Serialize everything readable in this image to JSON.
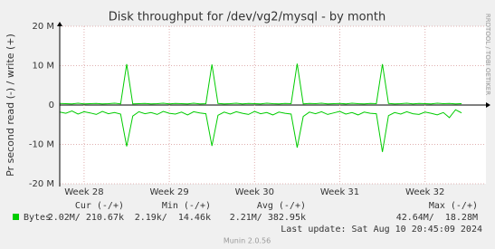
{
  "chart_data": {
    "type": "line",
    "title": "Disk throughput for /dev/vg2/mysql - by month",
    "y_label": "Pr second read (-) / write (+)",
    "watermark": "RRDTOOL / TOBI OETIKER",
    "x": [
      0,
      0.5,
      1,
      1.5,
      2,
      2.5,
      3,
      3.5,
      4,
      4.5,
      5,
      5.5,
      6,
      6.5,
      7,
      7.5,
      8,
      8.5,
      9,
      9.5,
      10,
      10.5,
      11,
      11.5,
      12,
      12.5,
      13,
      13.5,
      14,
      14.5,
      15,
      15.5,
      16,
      16.5,
      17,
      17.5,
      18,
      18.5,
      19,
      19.5,
      20,
      20.5,
      21,
      21.5,
      22,
      22.5,
      23,
      23.5,
      24,
      24.5,
      25,
      25.5,
      26,
      26.5,
      27,
      27.5,
      28,
      28.5,
      29,
      29.5,
      30,
      30.5,
      31,
      31.5,
      32,
      32.5,
      33
    ],
    "xlim": [
      0,
      35
    ],
    "xticks": [
      {
        "value": 2,
        "label": "Week 28"
      },
      {
        "value": 9,
        "label": "Week 29"
      },
      {
        "value": 16,
        "label": "Week 30"
      },
      {
        "value": 23,
        "label": "Week 31"
      },
      {
        "value": 30,
        "label": "Week 32"
      }
    ],
    "ylim": [
      -20000000,
      20000000
    ],
    "yticks": [
      {
        "value": -20000000,
        "label": "-20 M"
      },
      {
        "value": -10000000,
        "label": "-10 M"
      },
      0,
      {
        "value": 10000000,
        "label": "10 M"
      },
      {
        "value": 20000000,
        "label": "20 M"
      }
    ],
    "grid": true,
    "series": [
      {
        "name": "Bytes",
        "color": "#00cc00",
        "values": [
          400000,
          350000,
          300000,
          450000,
          300000,
          350000,
          400000,
          300000,
          350000,
          450000,
          300000,
          10400000,
          300000,
          350000,
          400000,
          300000,
          350000,
          450000,
          300000,
          400000,
          350000,
          300000,
          450000,
          300000,
          350000,
          10300000,
          400000,
          300000,
          350000,
          450000,
          300000,
          400000,
          350000,
          300000,
          450000,
          350000,
          300000,
          400000,
          350000,
          10500000,
          300000,
          400000,
          350000,
          450000,
          300000,
          350000,
          400000,
          300000,
          450000,
          350000,
          300000,
          400000,
          350000,
          10400000,
          400000,
          300000,
          350000,
          450000,
          300000,
          400000,
          350000,
          300000,
          450000,
          350000,
          400000,
          300000,
          350000
        ]
      },
      {
        "color": "#00cc00",
        "values": [
          -1800000,
          -2100000,
          -1500000,
          -2300000,
          -1700000,
          -2000000,
          -2400000,
          -1600000,
          -2200000,
          -1900000,
          -2300000,
          -10500000,
          -2800000,
          -1700000,
          -2200000,
          -1900000,
          -2400000,
          -1600000,
          -2100000,
          -2300000,
          -1800000,
          -2500000,
          -1700000,
          -2000000,
          -2200000,
          -10400000,
          -2600000,
          -1800000,
          -2300000,
          -1700000,
          -2100000,
          -2400000,
          -1600000,
          -2200000,
          -1900000,
          -2500000,
          -1800000,
          -2100000,
          -2300000,
          -10800000,
          -2900000,
          -1800000,
          -2200000,
          -1700000,
          -2400000,
          -2000000,
          -1600000,
          -2300000,
          -1900000,
          -2500000,
          -1800000,
          -2100000,
          -2200000,
          -11900000,
          -2700000,
          -1900000,
          -2300000,
          -1700000,
          -2200000,
          -2400000,
          -1800000,
          -2100000,
          -2500000,
          -1900000,
          -3200000,
          -1200000,
          -2000000
        ]
      }
    ],
    "legend_table": {
      "columns": [
        "Cur (-/+)",
        "Min (-/+)",
        "Avg (-/+)",
        "Max (-/+)"
      ],
      "rows": [
        [
          "2.02M/ 210.67k",
          "2.19k/  14.46k",
          "2.21M/ 382.95k",
          "42.64M/  18.28M"
        ]
      ]
    },
    "last_update": "Last update: Sat Aug 10 20:45:09 2024",
    "footer": "Munin 2.0.56"
  }
}
